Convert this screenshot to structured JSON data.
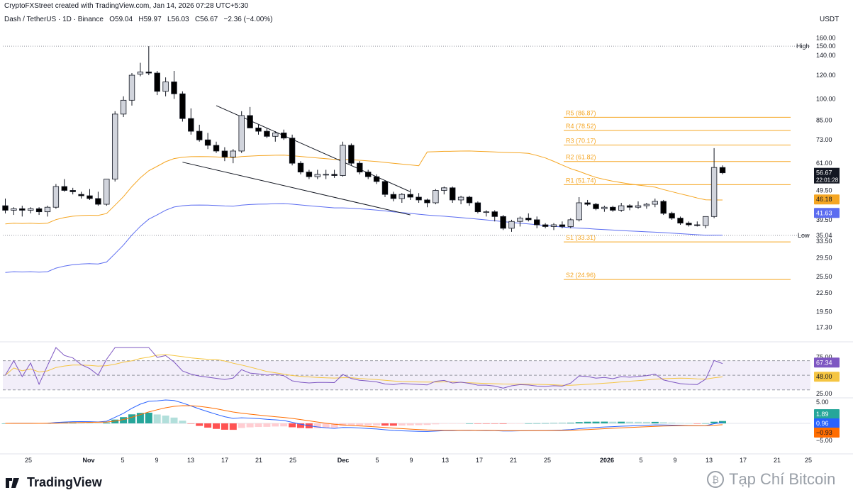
{
  "header": {
    "credit": "CryptoFXStreet created with TradingView.com, Jan 14, 2026 07:28 UTC+5:30",
    "symbol": "Dash / TetherUS · 1D · Binance",
    "open_label": "O",
    "open": "59.04",
    "high_label": "H",
    "high": "59.97",
    "low_label": "L",
    "low": "56.03",
    "close_label": "C",
    "close": "56.67",
    "change": "−2.36 (−4.00%)",
    "currency": "USDT"
  },
  "colors": {
    "up": "#d1d4dc",
    "down": "#000000",
    "sma_short": "#f5a623",
    "sma_long": "#5b6cf0",
    "pivot": "#f5a623",
    "rsi": "#7e57c2",
    "rsi_ma": "#f5c542",
    "macd": "#2962ff",
    "signal": "#ff6d00",
    "hist_up_strong": "#26a69a",
    "hist_up_weak": "#b2dfdb",
    "hist_down_strong": "#ff5252",
    "hist_down_weak": "#ffcdd2"
  },
  "brand": {
    "name": "TradingView",
    "watermark": "Tạp Chí Bitcoin"
  },
  "chart_data": [
    {
      "type": "candlestick",
      "scale": "log",
      "ylim": [
        15.8,
        172
      ],
      "y_ticks": [
        "160.00",
        "140.00",
        "120.00",
        "100.00",
        "85.00",
        "73.00",
        "61.00",
        "49.50",
        "39.50",
        "33.50",
        "29.50",
        "25.50",
        "22.50",
        "19.50",
        "17.30"
      ],
      "x_ticks": [
        "25",
        "Nov",
        "5",
        "9",
        "13",
        "17",
        "21",
        "25",
        "Dec",
        "5",
        "9",
        "13",
        "17",
        "21",
        "25",
        "2026",
        "5",
        "9",
        "13",
        "17",
        "21",
        "25"
      ],
      "candles": [
        [
          44.0,
          46.5,
          41.5,
          42.5
        ],
        [
          42.5,
          43.5,
          41.0,
          43.0
        ],
        [
          43.0,
          44.0,
          40.5,
          42.5
        ],
        [
          42.5,
          43.5,
          41.5,
          43.0
        ],
        [
          43.0,
          43.5,
          41.0,
          42.0
        ],
        [
          42.0,
          44.0,
          40.5,
          43.5
        ],
        [
          43.5,
          52.0,
          43.0,
          51.0
        ],
        [
          51.0,
          54.0,
          49.0,
          49.5
        ],
        [
          49.5,
          50.5,
          48.0,
          49.0
        ],
        [
          48.0,
          49.0,
          46.5,
          47.5
        ],
        [
          47.5,
          50.0,
          46.0,
          46.5
        ],
        [
          46.5,
          49.0,
          44.0,
          44.5
        ],
        [
          44.5,
          54.0,
          44.0,
          54.0
        ],
        [
          54.0,
          91.0,
          53.0,
          89.0
        ],
        [
          89.0,
          102.0,
          87.0,
          99.0
        ],
        [
          99.0,
          122.0,
          95.0,
          120.0
        ],
        [
          121.0,
          132.0,
          119.0,
          123.0
        ],
        [
          123.0,
          150.0,
          120.0,
          122.0
        ],
        [
          122.0,
          124.0,
          103.0,
          106.0
        ],
        [
          106.0,
          118.0,
          102.0,
          114.0
        ],
        [
          114.0,
          124.0,
          100.0,
          104.0
        ],
        [
          104.0,
          106.0,
          84.0,
          86.0
        ],
        [
          86.0,
          93.0,
          76.0,
          78.0
        ],
        [
          78.0,
          82.0,
          72.0,
          73.0
        ],
        [
          73.0,
          77.0,
          68.0,
          70.0
        ],
        [
          70.0,
          72.0,
          66.0,
          67.0
        ],
        [
          67.0,
          69.0,
          62.0,
          64.0
        ],
        [
          64.0,
          68.0,
          61.0,
          67.0
        ],
        [
          67.0,
          91.0,
          66.0,
          88.0
        ],
        [
          88.0,
          94.0,
          80.0,
          80.0
        ],
        [
          80.0,
          82.0,
          76.0,
          78.0
        ],
        [
          78.0,
          80.0,
          74.0,
          75.0
        ],
        [
          75.0,
          78.0,
          72.0,
          77.0
        ],
        [
          77.0,
          79.0,
          73.0,
          74.0
        ],
        [
          74.0,
          76.0,
          60.0,
          61.0
        ],
        [
          61.0,
          62.0,
          56.0,
          57.0
        ],
        [
          57.0,
          58.0,
          54.0,
          55.0
        ],
        [
          55.0,
          58.0,
          54.0,
          56.0
        ],
        [
          56.0,
          58.0,
          54.0,
          56.0
        ],
        [
          56.0,
          58.0,
          54.5,
          55.5
        ],
        [
          55.5,
          72.0,
          55.0,
          70.0
        ],
        [
          70.0,
          71.0,
          60.0,
          61.0
        ],
        [
          61.0,
          62.0,
          56.0,
          57.0
        ],
        [
          57.0,
          58.0,
          54.0,
          55.0
        ],
        [
          55.0,
          56.0,
          52.0,
          53.0
        ],
        [
          53.0,
          53.5,
          47.0,
          48.0
        ],
        [
          48.0,
          49.0,
          45.5,
          46.5
        ],
        [
          46.5,
          48.5,
          45.0,
          48.0
        ],
        [
          48.0,
          50.0,
          46.0,
          47.0
        ],
        [
          47.0,
          48.5,
          45.0,
          46.0
        ],
        [
          46.0,
          46.5,
          43.5,
          45.0
        ],
        [
          45.0,
          50.0,
          44.5,
          49.5
        ],
        [
          49.5,
          51.0,
          48.0,
          50.5
        ],
        [
          50.5,
          51.0,
          45.0,
          46.0
        ],
        [
          46.0,
          47.5,
          44.5,
          47.0
        ],
        [
          47.0,
          47.5,
          44.0,
          45.0
        ],
        [
          45.0,
          45.5,
          41.5,
          42.0
        ],
        [
          42.0,
          42.5,
          40.5,
          42.0
        ],
        [
          42.0,
          42.5,
          39.0,
          40.5
        ],
        [
          40.5,
          41.0,
          36.5,
          37.0
        ],
        [
          37.0,
          39.5,
          36.0,
          39.0
        ],
        [
          39.0,
          40.5,
          37.5,
          40.0
        ],
        [
          40.0,
          41.5,
          39.0,
          39.5
        ],
        [
          39.5,
          40.5,
          37.0,
          38.0
        ],
        [
          38.0,
          38.5,
          37.0,
          37.5
        ],
        [
          37.5,
          38.5,
          36.5,
          38.0
        ],
        [
          38.0,
          39.0,
          37.0,
          37.5
        ],
        [
          37.5,
          40.0,
          37.0,
          39.5
        ],
        [
          39.5,
          47.0,
          39.0,
          45.0
        ],
        [
          45.0,
          46.0,
          44.0,
          44.5
        ],
        [
          44.5,
          45.0,
          42.5,
          43.0
        ],
        [
          43.0,
          44.0,
          42.0,
          43.5
        ],
        [
          43.5,
          44.0,
          42.0,
          42.5
        ],
        [
          42.5,
          45.0,
          42.0,
          44.0
        ],
        [
          44.0,
          44.5,
          42.5,
          43.5
        ],
        [
          43.5,
          45.5,
          43.0,
          44.0
        ],
        [
          44.0,
          45.0,
          43.0,
          44.5
        ],
        [
          44.5,
          46.5,
          43.5,
          45.5
        ],
        [
          45.5,
          46.0,
          41.0,
          41.5
        ],
        [
          41.5,
          42.0,
          39.5,
          40.0
        ],
        [
          40.0,
          40.5,
          38.0,
          38.5
        ],
        [
          38.5,
          39.0,
          37.5,
          38.0
        ],
        [
          38.0,
          39.0,
          37.5,
          37.8
        ],
        [
          37.8,
          40.0,
          37.0,
          40.5
        ],
        [
          40.5,
          68.5,
          40.0,
          59.04
        ],
        [
          59.04,
          59.97,
          56.03,
          56.67
        ]
      ],
      "sma_short_last": 46.18,
      "sma_long_last": 41.63,
      "price_last": "56.67",
      "countdown": "22:01:28",
      "high_marker": {
        "label": "High",
        "value": "150.00"
      },
      "low_marker": {
        "label": "Low",
        "value": "35.04"
      },
      "pivots": [
        {
          "label": "R5 (86.87)",
          "value": 86.87
        },
        {
          "label": "R4 (78.52)",
          "value": 78.52
        },
        {
          "label": "R3 (70.17)",
          "value": 70.17
        },
        {
          "label": "R2 (61.82)",
          "value": 61.82
        },
        {
          "label": "R1 (51.74)",
          "value": 51.74
        },
        {
          "label": "S1 (33.31)",
          "value": 33.31
        },
        {
          "label": "S2 (24.96)",
          "value": 24.96
        }
      ],
      "sma_short_label": "46.18",
      "sma_long_label": "41.63"
    },
    {
      "type": "line",
      "name": "RSI",
      "ylim": [
        20,
        90
      ],
      "y_ticks": [
        "75.00",
        "25.00"
      ],
      "rsi_last": "67.34",
      "rsi_ma_last": "48.00"
    },
    {
      "type": "bar",
      "name": "MACD",
      "y_ticks": [
        "5.00",
        "−5.00"
      ],
      "hist_last": "1.89",
      "macd_last": "0.96",
      "signal_last": "−0.93"
    }
  ]
}
